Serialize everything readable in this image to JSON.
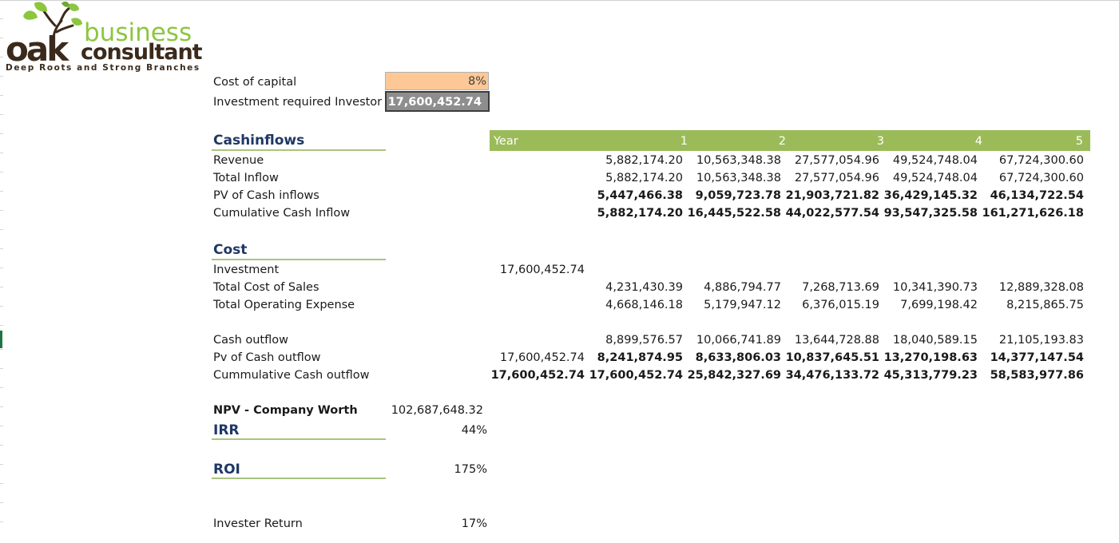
{
  "logo": {
    "brand_oak": "oak",
    "brand_business": "business",
    "brand_consultant": "consultant",
    "tagline": "Deep Roots and Strong Branches",
    "brand_colors": {
      "green": "#8cc63f",
      "brown": "#3b2a1c"
    }
  },
  "inputs": {
    "cost_of_capital_label": "Cost of capital",
    "cost_of_capital_value": "8%",
    "investment_label": "Investment required Investor",
    "investment_value": "17,600,452.74"
  },
  "header": {
    "year_label": "Year",
    "years": [
      "1",
      "2",
      "3",
      "4",
      "5"
    ]
  },
  "cashinflows": {
    "title": "Cashinflows",
    "rows": [
      {
        "label": "Revenue",
        "values": [
          "5,882,174.20",
          "10,563,348.38",
          "27,577,054.96",
          "49,524,748.04",
          "67,724,300.60"
        ]
      },
      {
        "label": "Total Inflow",
        "values": [
          "5,882,174.20",
          "10,563,348.38",
          "27,577,054.96",
          "49,524,748.04",
          "67,724,300.60"
        ]
      },
      {
        "label": "PV of Cash inflows",
        "values": [
          "5,447,466.38",
          "9,059,723.78",
          "21,903,721.82",
          "36,429,145.32",
          "46,134,722.54"
        ]
      },
      {
        "label": "Cumulative Cash Inflow",
        "values": [
          "5,882,174.20",
          "16,445,522.58",
          "44,022,577.54",
          "93,547,325.58",
          "161,271,626.18"
        ]
      }
    ]
  },
  "cost": {
    "title": "Cost",
    "rows": [
      {
        "label": "Investment",
        "year0": "17,600,452.74",
        "values": [
          "",
          "",
          "",
          "",
          ""
        ]
      },
      {
        "label": "Total Cost of Sales",
        "year0": "",
        "values": [
          "4,231,430.39",
          "4,886,794.77",
          "7,268,713.69",
          "10,341,390.73",
          "12,889,328.08"
        ]
      },
      {
        "label": "Total Operating Expense",
        "year0": "",
        "values": [
          "4,668,146.18",
          "5,179,947.12",
          "6,376,015.19",
          "7,699,198.42",
          "8,215,865.75"
        ]
      }
    ]
  },
  "outflow": {
    "rows": [
      {
        "label": "Cash outflow",
        "year0": "",
        "values": [
          "8,899,576.57",
          "10,066,741.89",
          "13,644,728.88",
          "18,040,589.15",
          "21,105,193.83"
        ]
      },
      {
        "label": "Pv of Cash outflow",
        "year0": "17,600,452.74",
        "values": [
          "8,241,874.95",
          "8,633,806.03",
          "10,837,645.51",
          "13,270,198.63",
          "14,377,147.54"
        ]
      },
      {
        "label": "Cummulative Cash outflow",
        "year0": "17,600,452.74",
        "values": [
          "17,600,452.74",
          "25,842,327.69",
          "34,476,133.72",
          "45,313,779.23",
          "58,583,977.86"
        ]
      }
    ]
  },
  "summary": {
    "npv_label": "NPV - Company Worth",
    "npv_value": "102,687,648.32",
    "irr_label": "IRR",
    "irr_value": "44%",
    "roi_label": "ROI",
    "roi_value": "175%",
    "investor_return_label": "Invester Return",
    "investor_return_value": "17%"
  },
  "colors": {
    "header_green": "#9bbb59",
    "input_orange": "#fdc896",
    "investment_gray": "#8e8e8e",
    "section_navy": "#1f3864",
    "underline_green": "#a9c47f"
  }
}
